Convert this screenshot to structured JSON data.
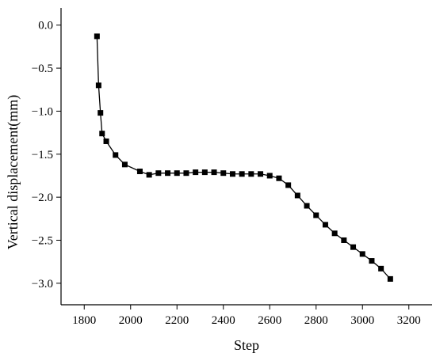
{
  "chart_data": {
    "type": "line",
    "title": "",
    "xlabel": "Step",
    "ylabel": "Vertical displacement(mm)",
    "xlim": [
      1700,
      3300
    ],
    "ylim": [
      -3.25,
      0.2
    ],
    "xticks": [
      1800,
      2000,
      2200,
      2400,
      2600,
      2800,
      3000,
      3200
    ],
    "xtick_labels": [
      "1800",
      "2000",
      "2200",
      "2400",
      "2600",
      "2800",
      "3000",
      "3200"
    ],
    "yticks": [
      0.0,
      -0.5,
      -1.0,
      -1.5,
      -2.0,
      -2.5,
      -3.0
    ],
    "ytick_labels": [
      "0.0",
      "−0.5",
      "−1.0",
      "−1.5",
      "−2.0",
      "−2.5",
      "−3.0"
    ],
    "grid": false,
    "marker": "square",
    "color": "#000000",
    "series": [
      {
        "x": [
          1855,
          1862,
          1870,
          1877,
          1895,
          1935,
          1975,
          2040,
          2080,
          2120,
          2160,
          2200,
          2240,
          2280,
          2320,
          2360,
          2400,
          2440,
          2480,
          2520,
          2560,
          2600,
          2640,
          2680,
          2720,
          2760,
          2800,
          2840,
          2880,
          2920,
          2960,
          3000,
          3040,
          3080,
          3120
        ],
        "y": [
          -0.13,
          -0.7,
          -1.02,
          -1.26,
          -1.35,
          -1.51,
          -1.62,
          -1.7,
          -1.74,
          -1.72,
          -1.72,
          -1.72,
          -1.72,
          -1.71,
          -1.71,
          -1.71,
          -1.72,
          -1.73,
          -1.73,
          -1.73,
          -1.73,
          -1.75,
          -1.78,
          -1.86,
          -1.98,
          -2.1,
          -2.21,
          -2.32,
          -2.42,
          -2.5,
          -2.58,
          -2.66,
          -2.74,
          -2.83,
          -2.95
        ]
      }
    ]
  }
}
